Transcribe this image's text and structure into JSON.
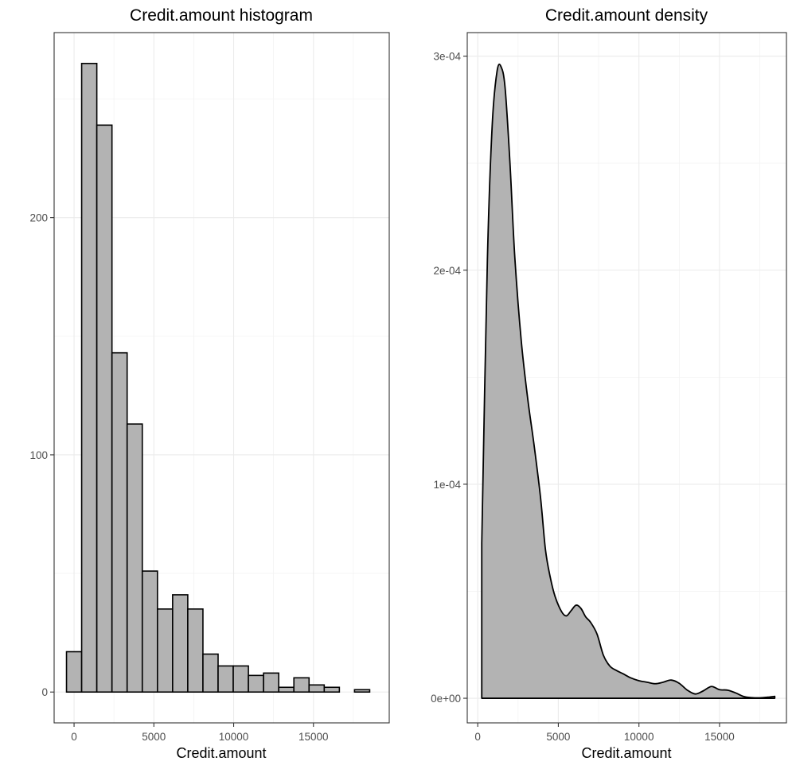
{
  "chart_data": [
    {
      "type": "bar",
      "title": "Credit.amount histogram",
      "xlabel": "Credit.amount",
      "ylabel": "",
      "xlim": [
        -1250,
        19750
      ],
      "ylim": [
        -13,
        278
      ],
      "x_ticks": [
        0,
        5000,
        10000,
        15000
      ],
      "x_tick_labels": [
        "0",
        "5000",
        "10000",
        "15000"
      ],
      "y_ticks": [
        0,
        100,
        200
      ],
      "y_tick_labels": [
        "0",
        "100",
        "200"
      ],
      "grid": true,
      "bin_width": 950,
      "bin_centers": [
        0,
        950,
        1900,
        2850,
        3800,
        4750,
        5700,
        6650,
        7600,
        8550,
        9500,
        10450,
        11400,
        12350,
        13300,
        14250,
        15200,
        16150,
        17100,
        18050
      ],
      "values": [
        17,
        265,
        239,
        143,
        113,
        51,
        35,
        41,
        35,
        16,
        11,
        11,
        7,
        8,
        2,
        6,
        3,
        2,
        0,
        1
      ]
    },
    {
      "type": "area",
      "title": "Credit.amount density",
      "xlabel": "Credit.amount",
      "ylabel": "",
      "xlim": [
        -650,
        19150
      ],
      "ylim": [
        -1.15e-05,
        0.000311
      ],
      "x_ticks": [
        0,
        5000,
        10000,
        15000
      ],
      "x_tick_labels": [
        "0",
        "5000",
        "10000",
        "15000"
      ],
      "y_ticks": [
        0,
        0.0001,
        0.0002,
        0.0003
      ],
      "y_tick_labels": [
        "0e+00",
        "1e-04",
        "2e-04",
        "3e-04"
      ],
      "grid": true,
      "x": [
        250,
        600,
        900,
        1200,
        1450,
        1700,
        2000,
        2300,
        2700,
        3100,
        3500,
        3900,
        4200,
        4500,
        4800,
        5200,
        5500,
        5800,
        6100,
        6400,
        6700,
        7000,
        7400,
        7800,
        8200,
        8600,
        9000,
        9500,
        10000,
        10500,
        11000,
        11500,
        12000,
        12500,
        13000,
        13500,
        14000,
        14500,
        15000,
        15500,
        16000,
        16500,
        17000,
        17500,
        18000,
        18424
      ],
      "y": [
        7.25e-05,
        0.000205,
        0.000268,
        0.000293,
        0.000295,
        0.000285,
        0.00025,
        0.000206,
        0.000167,
        0.00014,
        0.000118,
        9.35e-05,
        6.95e-05,
        5.65e-05,
        4.75e-05,
        4.05e-05,
        3.85e-05,
        4.1e-05,
        4.35e-05,
        4.2e-05,
        3.8e-05,
        3.55e-05,
        3e-05,
        2e-05,
        1.5e-05,
        1.3e-05,
        1.15e-05,
        9.5e-06,
        8.2e-06,
        7.5e-06,
        6.8e-06,
        7.5e-06,
        8.5e-06,
        7e-06,
        3.8e-06,
        2e-06,
        3.5e-06,
        5.5e-06,
        4e-06,
        3.8e-06,
        2.5e-06,
        8e-07,
        3e-07,
        2e-07,
        5e-07,
        9e-07
      ]
    }
  ]
}
